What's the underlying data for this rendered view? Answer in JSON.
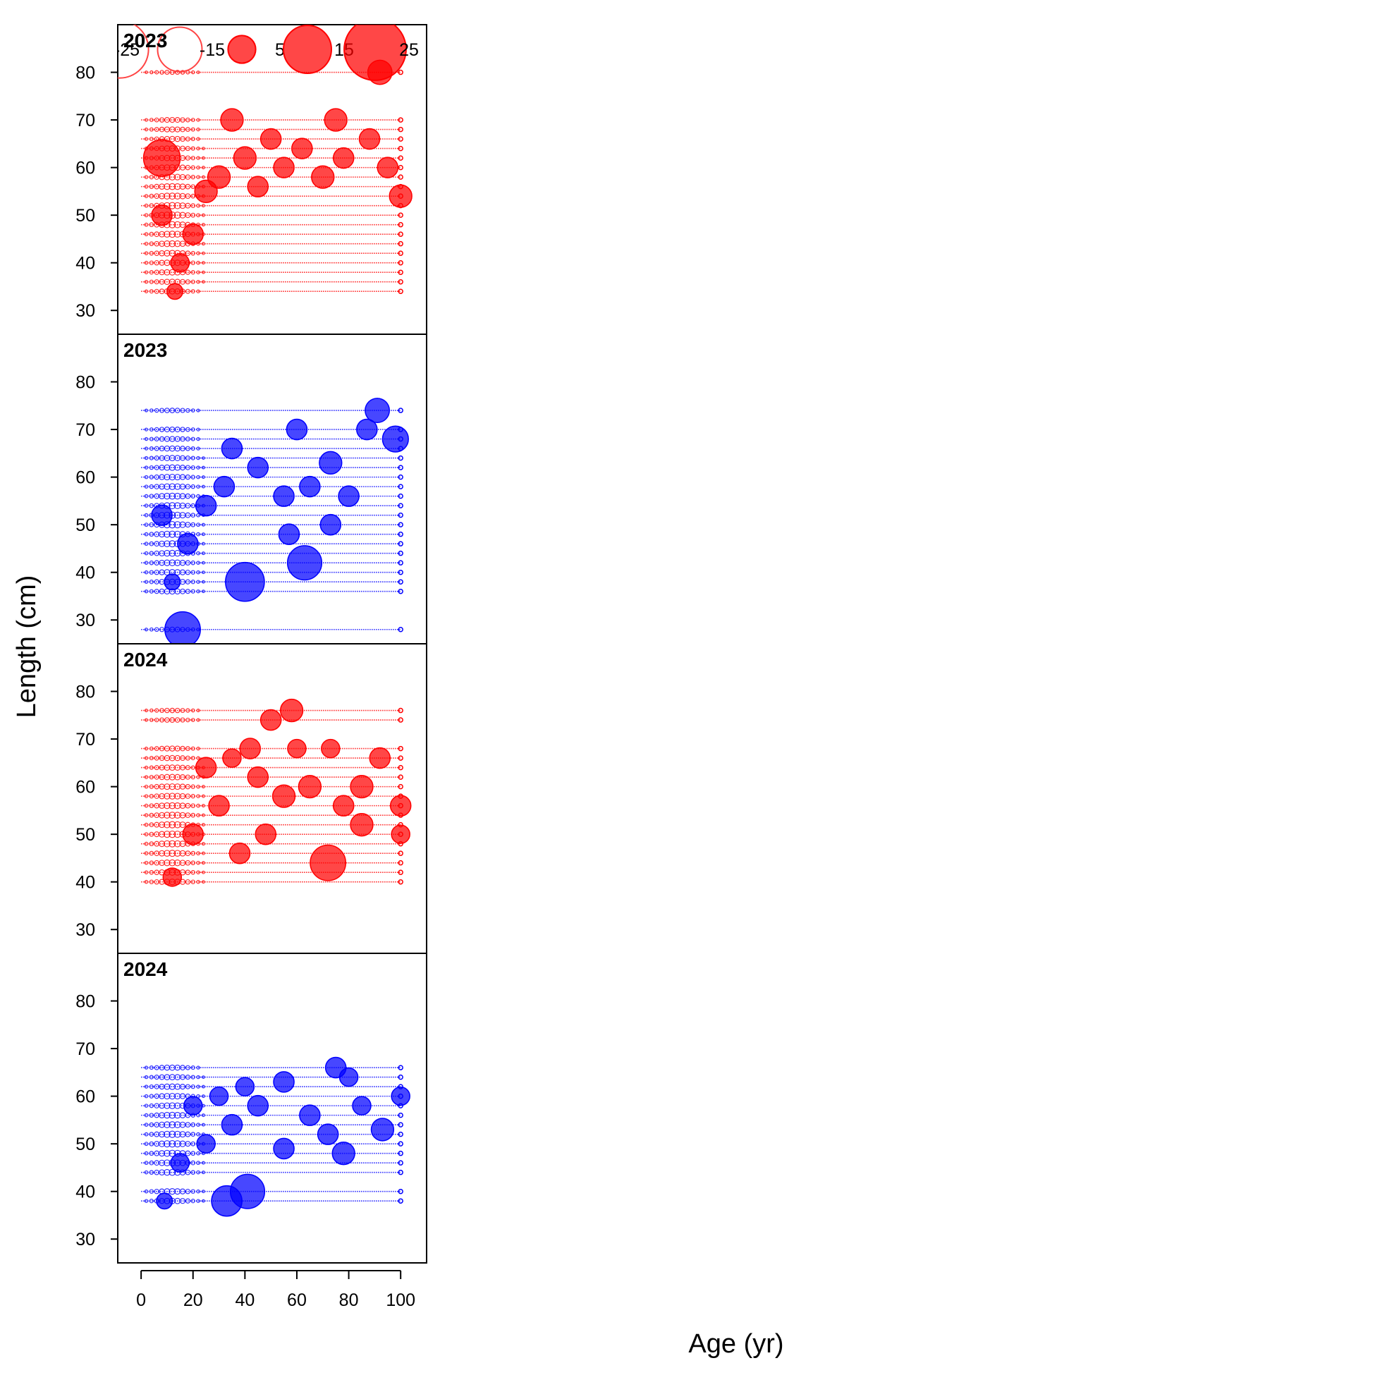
{
  "chart_data": {
    "type": "scatter",
    "subtype": "bubble",
    "xlabel": "Age (yr)",
    "ylabel": "Length (cm)",
    "xlim": [
      -9,
      110
    ],
    "ylim": [
      25,
      90
    ],
    "x_ticks": [
      "0",
      "20",
      "40",
      "60",
      "80",
      "100"
    ],
    "y_ticks": [
      "30",
      "40",
      "50",
      "60",
      "70",
      "80"
    ],
    "colors": {
      "positive": "#ff0000",
      "negative": "#0000ff"
    },
    "legend": {
      "placement": "top-left",
      "entries": [
        {
          "label": "-25",
          "value": -25
        },
        {
          "label": "-15",
          "value": -15
        },
        {
          "label": "5",
          "value": 5
        },
        {
          "label": "15",
          "value": 15
        },
        {
          "label": "25",
          "value": 25
        }
      ]
    },
    "panels": [
      {
        "label": "2023",
        "color": "#ff0000",
        "length_bins": [
          34,
          36,
          38,
          40,
          42,
          44,
          46,
          48,
          50,
          52,
          54,
          56,
          58,
          60,
          62,
          64,
          66,
          68,
          70,
          80
        ],
        "bubbles": [
          {
            "x": 8,
            "y": 62,
            "value": 16
          },
          {
            "x": 35,
            "y": 70,
            "value": 6
          },
          {
            "x": 75,
            "y": 70,
            "value": 6
          },
          {
            "x": 92,
            "y": 80,
            "value": 7
          },
          {
            "x": 100,
            "y": 54,
            "value": 6
          },
          {
            "x": 13,
            "y": 34,
            "value": 3
          },
          {
            "x": 8,
            "y": 50,
            "value": 5
          },
          {
            "x": 15,
            "y": 40,
            "value": 4
          },
          {
            "x": 20,
            "y": 46,
            "value": 5
          },
          {
            "x": 25,
            "y": 55,
            "value": 6
          },
          {
            "x": 30,
            "y": 58,
            "value": 6
          },
          {
            "x": 40,
            "y": 62,
            "value": 6
          },
          {
            "x": 45,
            "y": 56,
            "value": 5
          },
          {
            "x": 55,
            "y": 60,
            "value": 5
          },
          {
            "x": 62,
            "y": 64,
            "value": 5
          },
          {
            "x": 70,
            "y": 58,
            "value": 6
          },
          {
            "x": 78,
            "y": 62,
            "value": 5
          },
          {
            "x": 88,
            "y": 66,
            "value": 5
          },
          {
            "x": 95,
            "y": 60,
            "value": 5
          },
          {
            "x": 50,
            "y": 66,
            "value": 5
          }
        ]
      },
      {
        "label": "2023",
        "color": "#0000ff",
        "length_bins": [
          28,
          36,
          38,
          40,
          42,
          44,
          46,
          48,
          50,
          52,
          54,
          56,
          58,
          60,
          62,
          64,
          66,
          68,
          70,
          74
        ],
        "bubbles": [
          {
            "x": 16,
            "y": 28,
            "value": 15
          },
          {
            "x": 40,
            "y": 38,
            "value": 18
          },
          {
            "x": 63,
            "y": 42,
            "value": 14
          },
          {
            "x": 91,
            "y": 74,
            "value": 7
          },
          {
            "x": 98,
            "y": 68,
            "value": 8
          },
          {
            "x": 60,
            "y": 70,
            "value": 5
          },
          {
            "x": 87,
            "y": 70,
            "value": 5
          },
          {
            "x": 35,
            "y": 66,
            "value": 5
          },
          {
            "x": 8,
            "y": 52,
            "value": 5
          },
          {
            "x": 12,
            "y": 38,
            "value": 3
          },
          {
            "x": 18,
            "y": 46,
            "value": 5
          },
          {
            "x": 25,
            "y": 54,
            "value": 5
          },
          {
            "x": 32,
            "y": 58,
            "value": 5
          },
          {
            "x": 45,
            "y": 62,
            "value": 5
          },
          {
            "x": 55,
            "y": 56,
            "value": 5
          },
          {
            "x": 65,
            "y": 58,
            "value": 5
          },
          {
            "x": 73,
            "y": 63,
            "value": 6
          },
          {
            "x": 80,
            "y": 56,
            "value": 5
          },
          {
            "x": 73,
            "y": 50,
            "value": 5
          },
          {
            "x": 57,
            "y": 48,
            "value": 5
          }
        ]
      },
      {
        "label": "2024",
        "color": "#ff0000",
        "length_bins": [
          40,
          42,
          44,
          46,
          48,
          50,
          52,
          54,
          56,
          58,
          60,
          62,
          64,
          66,
          68,
          74,
          76
        ],
        "bubbles": [
          {
            "x": 72,
            "y": 44,
            "value": 15
          },
          {
            "x": 58,
            "y": 76,
            "value": 6
          },
          {
            "x": 50,
            "y": 74,
            "value": 5
          },
          {
            "x": 12,
            "y": 41,
            "value": 4
          },
          {
            "x": 100,
            "y": 56,
            "value": 5
          },
          {
            "x": 100,
            "y": 50,
            "value": 4
          },
          {
            "x": 92,
            "y": 66,
            "value": 5
          },
          {
            "x": 42,
            "y": 68,
            "value": 5
          },
          {
            "x": 73,
            "y": 68,
            "value": 4
          },
          {
            "x": 60,
            "y": 68,
            "value": 4
          },
          {
            "x": 25,
            "y": 64,
            "value": 5
          },
          {
            "x": 85,
            "y": 52,
            "value": 6
          },
          {
            "x": 85,
            "y": 60,
            "value": 6
          },
          {
            "x": 20,
            "y": 50,
            "value": 5
          },
          {
            "x": 30,
            "y": 56,
            "value": 5
          },
          {
            "x": 38,
            "y": 46,
            "value": 5
          },
          {
            "x": 48,
            "y": 50,
            "value": 5
          },
          {
            "x": 55,
            "y": 58,
            "value": 6
          },
          {
            "x": 65,
            "y": 60,
            "value": 6
          },
          {
            "x": 45,
            "y": 62,
            "value": 5
          },
          {
            "x": 35,
            "y": 66,
            "value": 4
          },
          {
            "x": 78,
            "y": 56,
            "value": 5
          }
        ]
      },
      {
        "label": "2024",
        "color": "#0000ff",
        "length_bins": [
          38,
          40,
          44,
          46,
          48,
          50,
          52,
          54,
          56,
          58,
          60,
          62,
          64,
          66
        ],
        "bubbles": [
          {
            "x": 41,
            "y": 40,
            "value": 14
          },
          {
            "x": 33,
            "y": 38,
            "value": 11
          },
          {
            "x": 9,
            "y": 38,
            "value": 3
          },
          {
            "x": 75,
            "y": 66,
            "value": 5
          },
          {
            "x": 80,
            "y": 64,
            "value": 4
          },
          {
            "x": 100,
            "y": 60,
            "value": 4
          },
          {
            "x": 93,
            "y": 53,
            "value": 6
          },
          {
            "x": 78,
            "y": 48,
            "value": 6
          },
          {
            "x": 15,
            "y": 46,
            "value": 4
          },
          {
            "x": 20,
            "y": 58,
            "value": 4
          },
          {
            "x": 25,
            "y": 50,
            "value": 4
          },
          {
            "x": 35,
            "y": 54,
            "value": 5
          },
          {
            "x": 45,
            "y": 58,
            "value": 5
          },
          {
            "x": 55,
            "y": 63,
            "value": 5
          },
          {
            "x": 55,
            "y": 49,
            "value": 5
          },
          {
            "x": 65,
            "y": 56,
            "value": 5
          },
          {
            "x": 72,
            "y": 52,
            "value": 5
          },
          {
            "x": 40,
            "y": 62,
            "value": 4
          },
          {
            "x": 30,
            "y": 60,
            "value": 4
          },
          {
            "x": 85,
            "y": 58,
            "value": 4
          }
        ]
      }
    ]
  }
}
